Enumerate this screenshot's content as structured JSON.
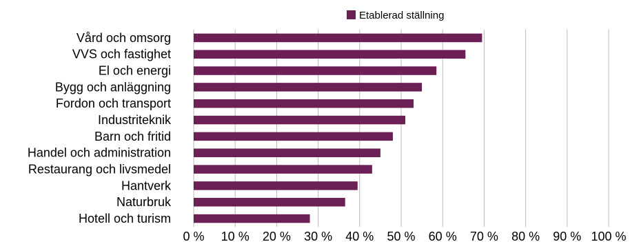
{
  "chart_data": {
    "type": "bar",
    "orientation": "horizontal",
    "title": "",
    "xlabel": "",
    "ylabel": "",
    "categories": [
      "Vård och omsorg",
      "VVS och fastighet",
      "El och energi",
      "Bygg och anläggning",
      "Fordon och transport",
      "Industriteknik",
      "Barn och fritid",
      "Handel och administration",
      "Restaurang och livsmedel",
      "Hantverk",
      "Naturbruk",
      "Hotell och turism"
    ],
    "series": [
      {
        "name": "Etablerad ställning",
        "color": "#6b1f55",
        "values": [
          69.5,
          65.5,
          58.5,
          55,
          53,
          51,
          48,
          45,
          43,
          39.5,
          36.5,
          28
        ]
      }
    ],
    "xlim": [
      0,
      100
    ],
    "x_ticks": [
      0,
      10,
      20,
      30,
      40,
      50,
      60,
      70,
      80,
      90,
      100
    ],
    "x_tick_labels": [
      "0 %",
      "10 %",
      "20 %",
      "30 %",
      "40 %",
      "50 %",
      "60 %",
      "70 %",
      "80 %",
      "90 %",
      "100 %"
    ],
    "grid": true,
    "gridline_color": "#b8b8b8",
    "legend_position": "top"
  }
}
